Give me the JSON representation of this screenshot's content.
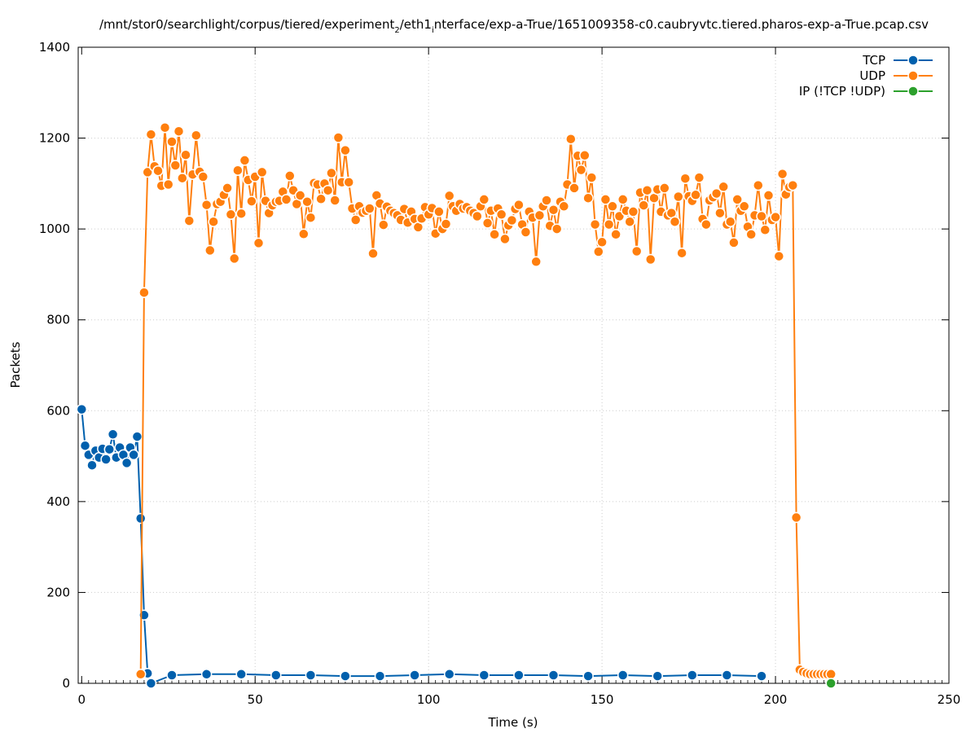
{
  "chart_data": {
    "type": "line",
    "title": "/mnt/stor0/searchlight/corpus/tiered/experiment_2/eth1_interface/exp-a-True/1651009358-c0.caubryvtc.tiered.pharos-exp-a-True.pcap.csv",
    "title_parts": {
      "a": "/mnt/stor0/searchlight/corpus/tiered/experiment",
      "sub1": "2",
      "b": "/eth1",
      "sub2": "i",
      "c": "nterface/exp-a-True/1651009358-c0.caubryvtc.tiered.pharos-exp-a-True.pcap.csv"
    },
    "xlabel": "Time (s)",
    "ylabel": "Packets",
    "xlim": [
      0,
      250
    ],
    "ylim": [
      0,
      1400
    ],
    "xticks": [
      0,
      50,
      100,
      150,
      200,
      250
    ],
    "yticks": [
      0,
      200,
      400,
      600,
      800,
      1000,
      1200,
      1400
    ],
    "grid": true,
    "legend_position": "top-right",
    "series": [
      {
        "name": "TCP",
        "color": "#0060ad",
        "x": [
          0,
          1,
          2,
          3,
          4,
          5,
          6,
          7,
          8,
          9,
          10,
          11,
          12,
          13,
          14,
          15,
          16,
          17,
          18,
          19,
          20,
          26,
          36,
          46,
          56,
          66,
          76,
          86,
          96,
          106,
          116,
          126,
          136,
          146,
          156,
          166,
          176,
          186,
          196
        ],
        "y": [
          603,
          523,
          503,
          480,
          512,
          497,
          516,
          493,
          515,
          548,
          497,
          519,
          503,
          485,
          519,
          503,
          543,
          363,
          150,
          22,
          0,
          18,
          20,
          20,
          18,
          18,
          16,
          16,
          18,
          20,
          18,
          18,
          18,
          16,
          18,
          16,
          18,
          18,
          16
        ]
      },
      {
        "name": "UDP",
        "color": "#ff7f0e",
        "x": [
          17,
          18,
          19,
          20,
          21,
          22,
          23,
          24,
          25,
          26,
          27,
          28,
          29,
          30,
          31,
          32,
          33,
          34,
          35,
          36,
          37,
          38,
          39,
          40,
          41,
          42,
          43,
          44,
          45,
          46,
          47,
          48,
          49,
          50,
          51,
          52,
          53,
          54,
          55,
          56,
          57,
          58,
          59,
          60,
          61,
          62,
          63,
          64,
          65,
          66,
          67,
          68,
          69,
          70,
          71,
          72,
          73,
          74,
          75,
          76,
          77,
          78,
          79,
          80,
          81,
          82,
          83,
          84,
          85,
          86,
          87,
          88,
          89,
          90,
          91,
          92,
          93,
          94,
          95,
          96,
          97,
          98,
          99,
          100,
          101,
          102,
          103,
          104,
          105,
          106,
          107,
          108,
          109,
          110,
          111,
          112,
          113,
          114,
          115,
          116,
          117,
          118,
          119,
          120,
          121,
          122,
          123,
          124,
          125,
          126,
          127,
          128,
          129,
          130,
          131,
          132,
          133,
          134,
          135,
          136,
          137,
          138,
          139,
          140,
          141,
          142,
          143,
          144,
          145,
          146,
          147,
          148,
          149,
          150,
          151,
          152,
          153,
          154,
          155,
          156,
          157,
          158,
          159,
          160,
          161,
          162,
          163,
          164,
          165,
          166,
          167,
          168,
          169,
          170,
          171,
          172,
          173,
          174,
          175,
          176,
          177,
          178,
          179,
          180,
          181,
          182,
          183,
          184,
          185,
          186,
          187,
          188,
          189,
          190,
          191,
          192,
          193,
          194,
          195,
          196,
          197,
          198,
          199,
          200,
          201,
          202,
          203,
          204,
          205,
          206,
          207,
          208,
          209,
          210,
          211,
          212,
          213,
          214,
          215,
          216
        ],
        "y": [
          20,
          860,
          1125,
          1208,
          1138,
          1128,
          1095,
          1223,
          1098,
          1192,
          1140,
          1215,
          1112,
          1163,
          1018,
          1120,
          1206,
          1126,
          1115,
          1053,
          953,
          1016,
          1055,
          1060,
          1075,
          1090,
          1032,
          935,
          1129,
          1034,
          1151,
          1108,
          1061,
          1115,
          969,
          1125,
          1062,
          1035,
          1052,
          1060,
          1062,
          1082,
          1065,
          1117,
          1085,
          1055,
          1074,
          989,
          1060,
          1025,
          1101,
          1098,
          1066,
          1100,
          1085,
          1123,
          1063,
          1201,
          1103,
          1173,
          1103,
          1045,
          1020,
          1050,
          1036,
          1040,
          1045,
          946,
          1074,
          1056,
          1009,
          1049,
          1040,
          1035,
          1030,
          1020,
          1044,
          1014,
          1038,
          1022,
          1004,
          1023,
          1048,
          1032,
          1046,
          990,
          1038,
          1000,
          1011,
          1073,
          1050,
          1040,
          1055,
          1045,
          1048,
          1040,
          1035,
          1028,
          1050,
          1065,
          1013,
          1040,
          988,
          1045,
          1032,
          978,
          1008,
          1019,
          1044,
          1053,
          1010,
          993,
          1038,
          1025,
          928,
          1030,
          1050,
          1063,
          1007,
          1042,
          1000,
          1060,
          1050,
          1098,
          1198,
          1090,
          1161,
          1130,
          1162,
          1068,
          1113,
          1010,
          950,
          971,
          1065,
          1010,
          1050,
          988,
          1028,
          1065,
          1040,
          1016,
          1038,
          951,
          1080,
          1052,
          1085,
          933,
          1068,
          1087,
          1038,
          1090,
          1030,
          1035,
          1016,
          1071,
          947,
          1111,
          1072,
          1062,
          1075,
          1113,
          1022,
          1010,
          1063,
          1070,
          1078,
          1035,
          1093,
          1010,
          1016,
          970,
          1065,
          1040,
          1050,
          1005,
          988,
          1030,
          1096,
          1028,
          998,
          1074,
          1020,
          1026,
          940,
          1121,
          1076,
          1092,
          1096,
          365,
          30,
          25,
          22,
          20,
          20,
          20,
          20,
          20,
          20,
          20
        ]
      },
      {
        "name": "IP (!TCP  !UDP)",
        "color": "#2ca02c",
        "x": [
          216
        ],
        "y": [
          0
        ]
      }
    ]
  }
}
